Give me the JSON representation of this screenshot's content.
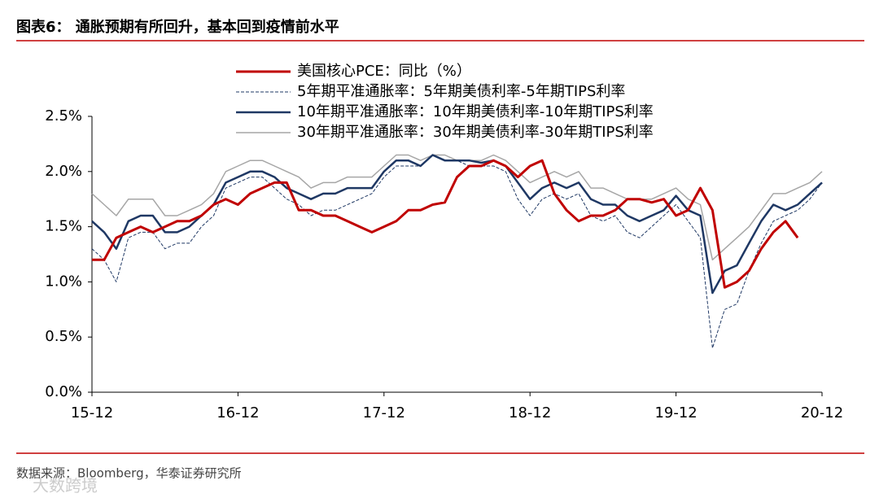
{
  "title": "图表6： 通胀预期有所回升，基本回到疫情前水平",
  "source": "数据来源：Bloomberg，华泰证券研究所",
  "watermark": "大数跨境",
  "chart_data": {
    "type": "line",
    "x": [
      "15-12",
      "16-01",
      "16-02",
      "16-03",
      "16-04",
      "16-05",
      "16-06",
      "16-07",
      "16-08",
      "16-09",
      "16-10",
      "16-11",
      "16-12",
      "17-01",
      "17-02",
      "17-03",
      "17-04",
      "17-05",
      "17-06",
      "17-07",
      "17-08",
      "17-09",
      "17-10",
      "17-11",
      "17-12",
      "18-01",
      "18-02",
      "18-03",
      "18-04",
      "18-05",
      "18-06",
      "18-07",
      "18-08",
      "18-09",
      "18-10",
      "18-11",
      "18-12",
      "19-01",
      "19-02",
      "19-03",
      "19-04",
      "19-05",
      "19-06",
      "19-07",
      "19-08",
      "19-09",
      "19-10",
      "19-11",
      "19-12",
      "20-01",
      "20-02",
      "20-03",
      "20-04",
      "20-05",
      "20-06",
      "20-07",
      "20-08",
      "20-09",
      "20-10",
      "20-11",
      "20-12"
    ],
    "xticks": [
      "15-12",
      "16-12",
      "17-12",
      "18-12",
      "19-12",
      "20-12"
    ],
    "ylim": [
      0,
      2.5
    ],
    "yticks": [
      {
        "value": 0,
        "label": "0.0%"
      },
      {
        "value": 0.5,
        "label": "0.5%"
      },
      {
        "value": 1,
        "label": "1.0%"
      },
      {
        "value": 1.5,
        "label": "1.5%"
      },
      {
        "value": 2,
        "label": "2.0%"
      },
      {
        "value": 2.5,
        "label": "2.5%"
      }
    ],
    "series": [
      {
        "name": "美国核心PCE：同比（%）",
        "color": "#c00000",
        "line_style": "solid",
        "linewidth": 3,
        "values": [
          1.2,
          1.2,
          1.4,
          1.45,
          1.5,
          1.45,
          1.5,
          1.55,
          1.55,
          1.6,
          1.7,
          1.75,
          1.7,
          1.8,
          1.85,
          1.9,
          1.9,
          1.65,
          1.65,
          1.6,
          1.6,
          1.55,
          1.5,
          1.45,
          1.5,
          1.55,
          1.65,
          1.65,
          1.7,
          1.72,
          1.95,
          2.05,
          2.05,
          2.1,
          2.05,
          1.95,
          2.05,
          2.1,
          1.8,
          1.65,
          1.55,
          1.6,
          1.6,
          1.65,
          1.75,
          1.75,
          1.72,
          1.75,
          1.6,
          1.65,
          1.85,
          1.65,
          0.95,
          1.0,
          1.1,
          1.3,
          1.45,
          1.55,
          1.4,
          null,
          null
        ]
      },
      {
        "name": "5年期平准通胀率：5年期美债利率-5年期TIPS利率",
        "color": "#1f3864",
        "line_style": "dashed",
        "linewidth": 1,
        "values": [
          1.3,
          1.2,
          1.0,
          1.4,
          1.45,
          1.45,
          1.3,
          1.35,
          1.35,
          1.5,
          1.6,
          1.85,
          1.9,
          1.95,
          1.95,
          1.85,
          1.75,
          1.7,
          1.6,
          1.65,
          1.65,
          1.7,
          1.75,
          1.8,
          1.95,
          2.05,
          2.05,
          2.05,
          2.15,
          2.1,
          2.1,
          2.05,
          2.05,
          2.05,
          2.0,
          1.75,
          1.6,
          1.75,
          1.8,
          1.75,
          1.8,
          1.6,
          1.55,
          1.6,
          1.45,
          1.4,
          1.5,
          1.6,
          1.7,
          1.55,
          1.4,
          0.4,
          0.75,
          0.8,
          1.1,
          1.35,
          1.55,
          1.6,
          1.65,
          1.75,
          1.9
        ]
      },
      {
        "name": "10年期平准通胀率：10年期美债利率-10年期TIPS利率",
        "color": "#1f3864",
        "line_style": "solid",
        "linewidth": 2.5,
        "values": [
          1.55,
          1.45,
          1.3,
          1.55,
          1.6,
          1.6,
          1.45,
          1.45,
          1.5,
          1.6,
          1.7,
          1.9,
          1.95,
          2.0,
          2.0,
          1.95,
          1.85,
          1.8,
          1.75,
          1.8,
          1.8,
          1.85,
          1.85,
          1.85,
          2.0,
          2.1,
          2.1,
          2.05,
          2.15,
          2.1,
          2.1,
          2.1,
          2.08,
          2.1,
          2.05,
          1.9,
          1.75,
          1.85,
          1.9,
          1.85,
          1.9,
          1.75,
          1.7,
          1.7,
          1.6,
          1.55,
          1.6,
          1.65,
          1.78,
          1.65,
          1.6,
          0.9,
          1.1,
          1.15,
          1.35,
          1.55,
          1.7,
          1.65,
          1.7,
          1.8,
          1.9
        ]
      },
      {
        "name": "30年期平准通胀率：30年期美债利率-30年期TIPS利率",
        "color": "#a6a6a6",
        "line_style": "solid",
        "linewidth": 1.5,
        "values": [
          1.8,
          1.7,
          1.6,
          1.75,
          1.75,
          1.75,
          1.6,
          1.6,
          1.65,
          1.7,
          1.8,
          2.0,
          2.05,
          2.1,
          2.1,
          2.05,
          2.0,
          1.95,
          1.85,
          1.9,
          1.9,
          1.95,
          1.95,
          1.95,
          2.05,
          2.15,
          2.15,
          2.1,
          2.15,
          2.15,
          2.1,
          2.1,
          2.1,
          2.15,
          2.1,
          2.0,
          1.9,
          1.95,
          2.0,
          1.95,
          2.0,
          1.85,
          1.85,
          1.8,
          1.75,
          1.75,
          1.75,
          1.8,
          1.85,
          1.75,
          1.7,
          1.2,
          1.3,
          1.4,
          1.5,
          1.65,
          1.8,
          1.8,
          1.85,
          1.9,
          2.0
        ]
      }
    ]
  }
}
